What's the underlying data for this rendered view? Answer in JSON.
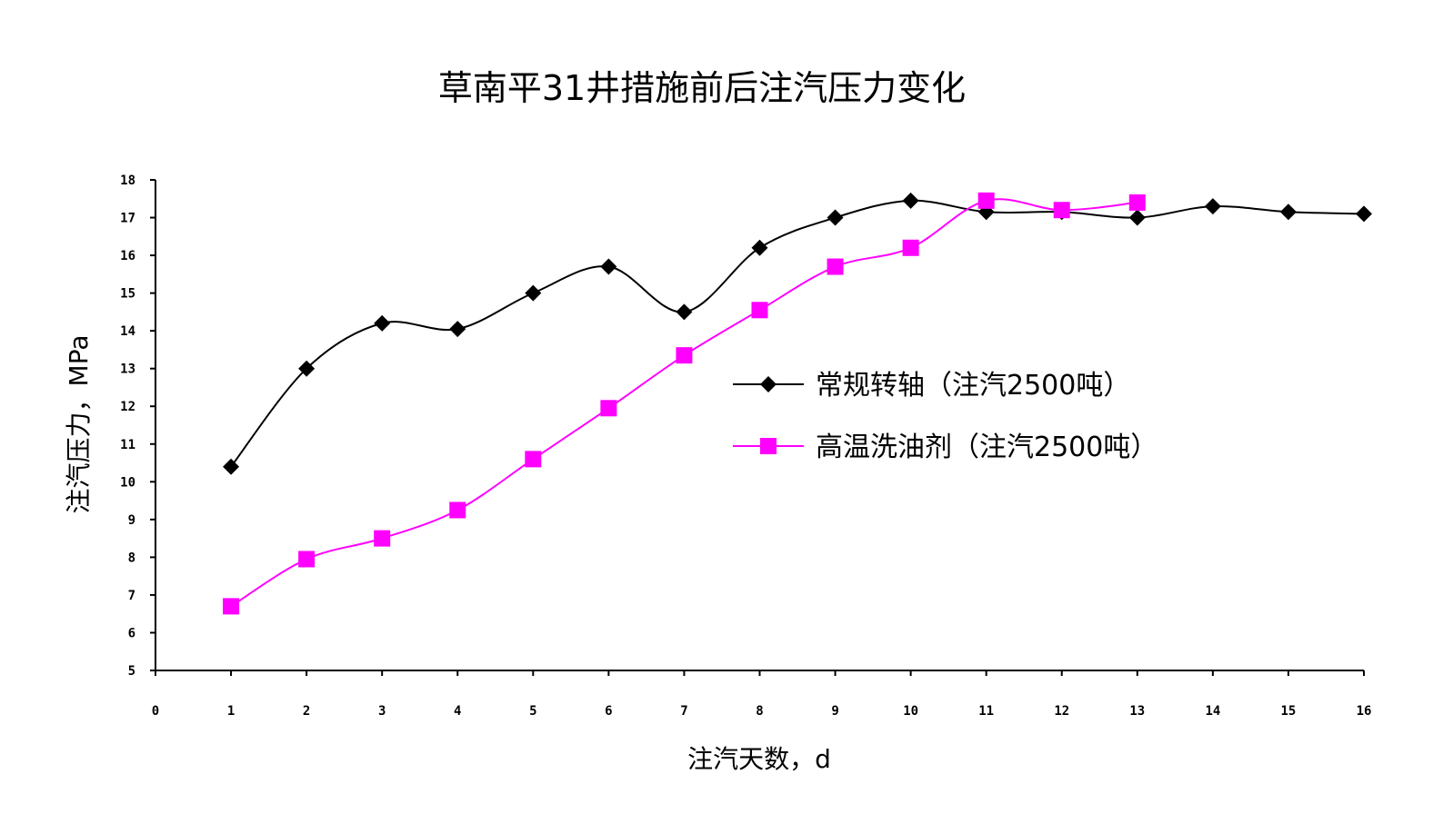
{
  "chart_data": {
    "type": "line",
    "title": "草南平31井措施前后注汽压力变化",
    "xlabel": "注汽天数，d",
    "ylabel": "注汽压力，MPa",
    "xlim": [
      0,
      16
    ],
    "ylim": [
      5,
      18
    ],
    "xticks": [
      0,
      1,
      2,
      3,
      4,
      5,
      6,
      7,
      8,
      9,
      10,
      11,
      12,
      13,
      14,
      15,
      16
    ],
    "yticks": [
      5,
      6,
      7,
      8,
      9,
      10,
      11,
      12,
      13,
      14,
      15,
      16,
      17,
      18
    ],
    "grid": false,
    "legend_position": "right-center",
    "series": [
      {
        "name": "常规转轴（注汽2500吨）",
        "color": "#000000",
        "marker": "diamond",
        "x": [
          1,
          2,
          3,
          4,
          5,
          6,
          7,
          8,
          9,
          10,
          11,
          12,
          13,
          14,
          15,
          16
        ],
        "y": [
          10.4,
          13.0,
          14.2,
          14.05,
          15.0,
          15.7,
          14.5,
          16.2,
          17.0,
          17.45,
          17.15,
          17.15,
          17.0,
          17.3,
          17.15,
          17.1
        ]
      },
      {
        "name": "高温洗油剂（注汽2500吨）",
        "color": "#ff00ff",
        "marker": "square",
        "x": [
          1,
          2,
          3,
          4,
          5,
          6,
          7,
          8,
          9,
          10,
          11,
          12,
          13
        ],
        "y": [
          6.7,
          7.95,
          8.5,
          9.25,
          10.6,
          11.95,
          13.35,
          14.55,
          15.7,
          16.2,
          17.45,
          17.2,
          17.4
        ]
      }
    ]
  }
}
